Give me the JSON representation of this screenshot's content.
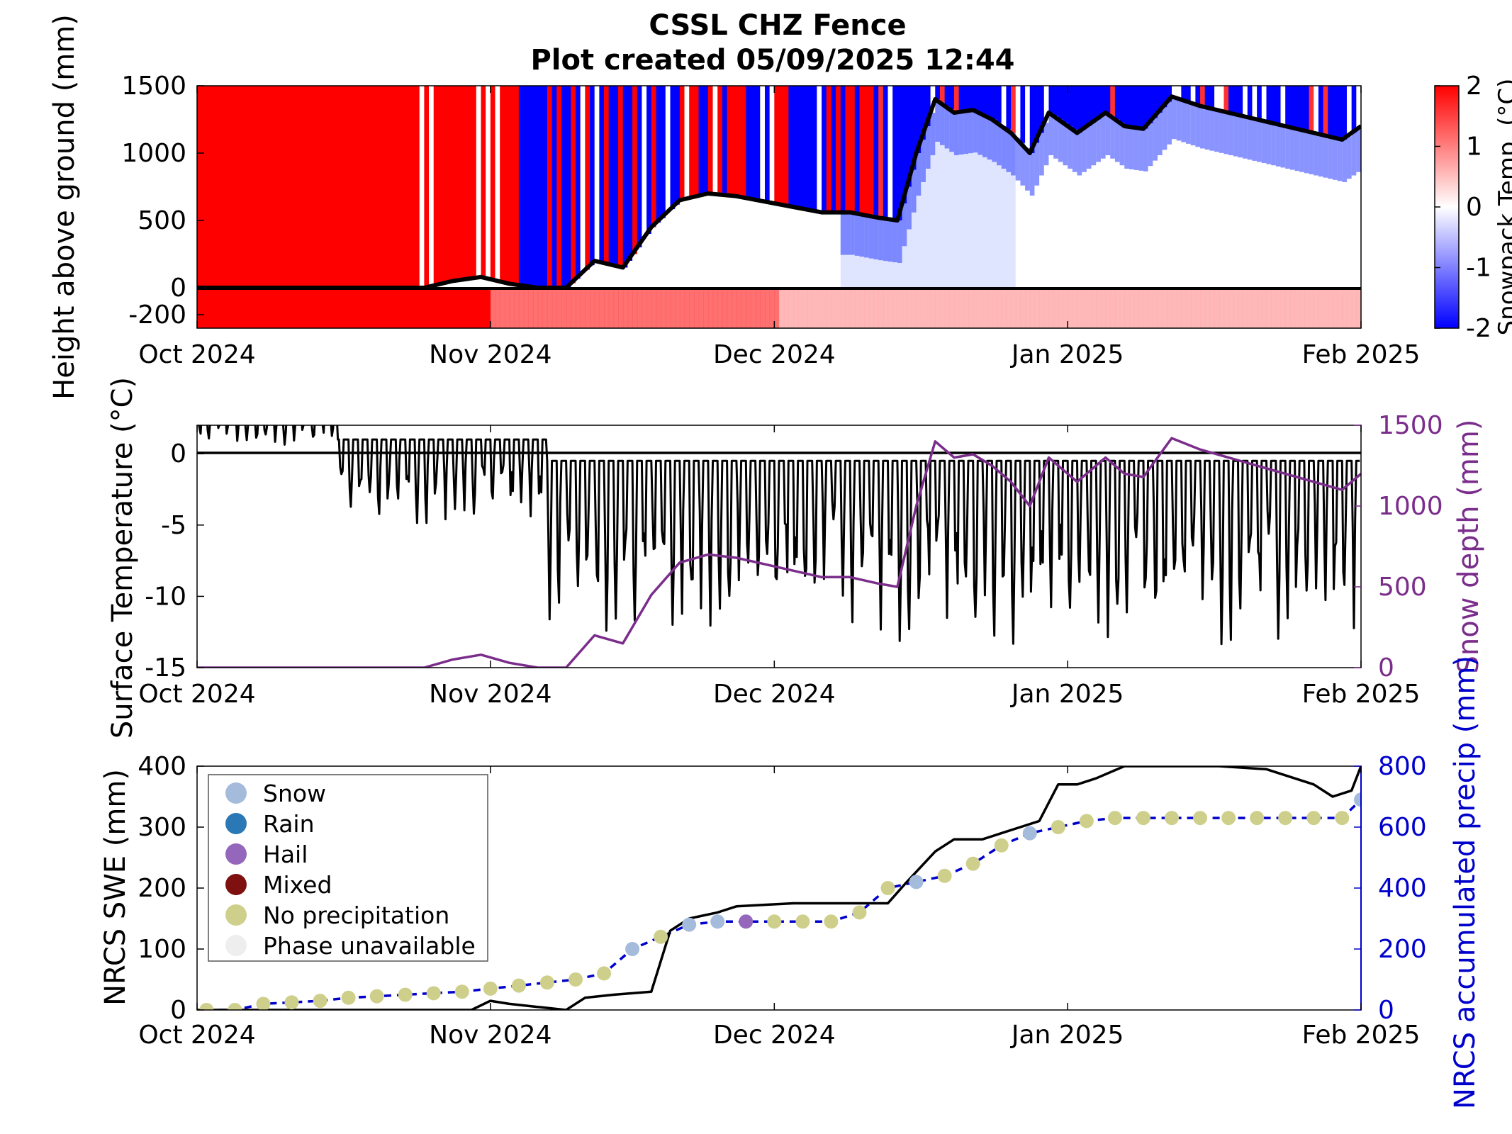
{
  "title": "CSSL CHZ Fence",
  "subtitle": "Plot created 05/09/2025 12:44",
  "colors": {
    "warm": "#ff0000",
    "cold": "#0000ff",
    "neutral": "#ffffff",
    "snow_depth": "#7b2d8b",
    "precip": "#0000cc",
    "swe": "#000000",
    "phase_snow": "#a5bbdc",
    "phase_rain": "#2a78b5",
    "phase_hail": "#9467bd",
    "phase_mixed": "#7f1010",
    "phase_none": "#cfcf8c",
    "phase_unavailable": "#eeeeee"
  },
  "chart_data": [
    {
      "id": "snowpack",
      "type": "heatmap",
      "ylabel": "Height above ground (mm)",
      "ylim": [
        -300,
        1500
      ],
      "yticks": [
        1500,
        1000,
        500,
        0,
        -200
      ],
      "x_start": "2024-10-01",
      "x_end": "2025-02-01",
      "xticks": [
        "Oct 2024",
        "Nov 2024",
        "Dec 2024",
        "Jan 2025",
        "Feb 2025"
      ],
      "colorbar": {
        "label": "Snowpack Temp. (°C)",
        "range": [
          -2,
          2
        ],
        "ticks": [
          "2",
          "1",
          "0",
          "-1",
          "-2"
        ]
      },
      "snow_depth_line": {
        "dates": [
          "2024-10-01",
          "2024-10-25",
          "2024-10-28",
          "2024-10-31",
          "2024-11-03",
          "2024-11-06",
          "2024-11-09",
          "2024-11-12",
          "2024-11-15",
          "2024-11-18",
          "2024-11-21",
          "2024-11-24",
          "2024-11-27",
          "2024-11-30",
          "2024-12-03",
          "2024-12-06",
          "2024-12-09",
          "2024-12-12",
          "2024-12-14",
          "2024-12-16",
          "2024-12-18",
          "2024-12-20",
          "2024-12-22",
          "2024-12-24",
          "2024-12-26",
          "2024-12-28",
          "2024-12-30",
          "2025-01-02",
          "2025-01-05",
          "2025-01-07",
          "2025-01-09",
          "2025-01-12",
          "2025-01-15",
          "2025-01-18",
          "2025-01-21",
          "2025-01-24",
          "2025-01-27",
          "2025-01-30",
          "2025-02-01"
        ],
        "values": [
          0,
          0,
          50,
          80,
          30,
          0,
          0,
          200,
          150,
          450,
          650,
          700,
          680,
          640,
          600,
          560,
          560,
          520,
          500,
          1000,
          1400,
          1300,
          1320,
          1250,
          1150,
          1000,
          1300,
          1150,
          1300,
          1200,
          1180,
          1420,
          1350,
          1300,
          1250,
          1200,
          1150,
          1100,
          1200
        ]
      }
    },
    {
      "id": "surface-temp",
      "type": "line",
      "ylabel": "Surface Temperature (°C)",
      "y2label": "Snow depth (mm)",
      "ylim": [
        -15,
        2
      ],
      "yticks": [
        "0",
        "-5",
        "-10",
        "-15"
      ],
      "y2lim": [
        0,
        1500
      ],
      "y2ticks": [
        "1500",
        "1000",
        "500",
        "0"
      ],
      "xticks": [
        "Oct 2024",
        "Nov 2024",
        "Dec 2024",
        "Jan 2025",
        "Feb 2025"
      ],
      "series": [
        {
          "values_note_daily_range_c": [
            -1,
            -14
          ]
        }
      ]
    },
    {
      "id": "swe",
      "type": "scatter",
      "ylabel": "NRCS SWE (mm)",
      "y2label": "NRCS accumulated precip (mm)",
      "ylim": [
        0,
        400
      ],
      "yticks": [
        "400",
        "300",
        "200",
        "100",
        "0"
      ],
      "y2lim": [
        0,
        800
      ],
      "y2ticks": [
        "800",
        "600",
        "400",
        "200",
        "0"
      ],
      "xticks": [
        "Oct 2024",
        "Nov 2024",
        "Dec 2024",
        "Jan 2025",
        "Feb 2025"
      ],
      "legend": {
        "position": "top-left",
        "items": [
          {
            "label": "Snow",
            "color": "#a5bbdc"
          },
          {
            "label": "Rain",
            "color": "#2a78b5"
          },
          {
            "label": "Hail",
            "color": "#9467bd"
          },
          {
            "label": "Mixed",
            "color": "#7f1010"
          },
          {
            "label": "No precipitation",
            "color": "#cfcf8c"
          },
          {
            "label": "Phase unavailable",
            "color": "#eeeeee"
          }
        ]
      },
      "swe_line": {
        "dates": [
          "2024-10-01",
          "2024-10-30",
          "2024-11-01",
          "2024-11-03",
          "2024-11-06",
          "2024-11-09",
          "2024-11-11",
          "2024-11-14",
          "2024-11-18",
          "2024-11-20",
          "2024-11-22",
          "2024-11-25",
          "2024-11-27",
          "2024-12-03",
          "2024-12-09",
          "2024-12-13",
          "2024-12-15",
          "2024-12-18",
          "2024-12-20",
          "2024-12-23",
          "2024-12-25",
          "2024-12-27",
          "2024-12-29",
          "2024-12-31",
          "2025-01-02",
          "2025-01-04",
          "2025-01-07",
          "2025-01-17",
          "2025-01-22",
          "2025-01-27",
          "2025-01-29",
          "2025-01-31",
          "2025-02-01"
        ],
        "values": [
          0,
          0,
          15,
          10,
          5,
          0,
          20,
          25,
          30,
          130,
          150,
          160,
          170,
          175,
          175,
          175,
          210,
          260,
          280,
          280,
          290,
          300,
          310,
          370,
          370,
          380,
          400,
          400,
          395,
          370,
          350,
          360,
          400
        ]
      },
      "precip_points": {
        "phase_codes": "N=No precipitation, S=Snow, H=Hail",
        "dates": [
          "2024-10-02",
          "2024-10-05",
          "2024-10-08",
          "2024-10-11",
          "2024-10-14",
          "2024-10-17",
          "2024-10-20",
          "2024-10-23",
          "2024-10-26",
          "2024-10-29",
          "2024-11-01",
          "2024-11-04",
          "2024-11-07",
          "2024-11-10",
          "2024-11-13",
          "2024-11-16",
          "2024-11-19",
          "2024-11-22",
          "2024-11-25",
          "2024-11-28",
          "2024-12-01",
          "2024-12-04",
          "2024-12-07",
          "2024-12-10",
          "2024-12-13",
          "2024-12-16",
          "2024-12-19",
          "2024-12-22",
          "2024-12-25",
          "2024-12-28",
          "2024-12-31",
          "2025-01-03",
          "2025-01-06",
          "2025-01-09",
          "2025-01-12",
          "2025-01-15",
          "2025-01-18",
          "2025-01-21",
          "2025-01-24",
          "2025-01-27",
          "2025-01-30",
          "2025-02-01"
        ],
        "phases": [
          "N",
          "N",
          "N",
          "N",
          "N",
          "N",
          "N",
          "N",
          "N",
          "N",
          "N",
          "N",
          "N",
          "N",
          "N",
          "S",
          "N",
          "S",
          "S",
          "H",
          "N",
          "N",
          "N",
          "N",
          "N",
          "S",
          "N",
          "N",
          "N",
          "S",
          "N",
          "N",
          "N",
          "N",
          "N",
          "N",
          "N",
          "N",
          "N",
          "N",
          "N",
          "S"
        ],
        "accum_precip": [
          0,
          0,
          20,
          25,
          30,
          40,
          45,
          50,
          55,
          60,
          70,
          80,
          90,
          100,
          120,
          200,
          240,
          280,
          290,
          290,
          290,
          290,
          290,
          320,
          400,
          420,
          440,
          480,
          540,
          580,
          600,
          620,
          630,
          630,
          630,
          630,
          630,
          630,
          630,
          630,
          630,
          690
        ]
      }
    }
  ]
}
